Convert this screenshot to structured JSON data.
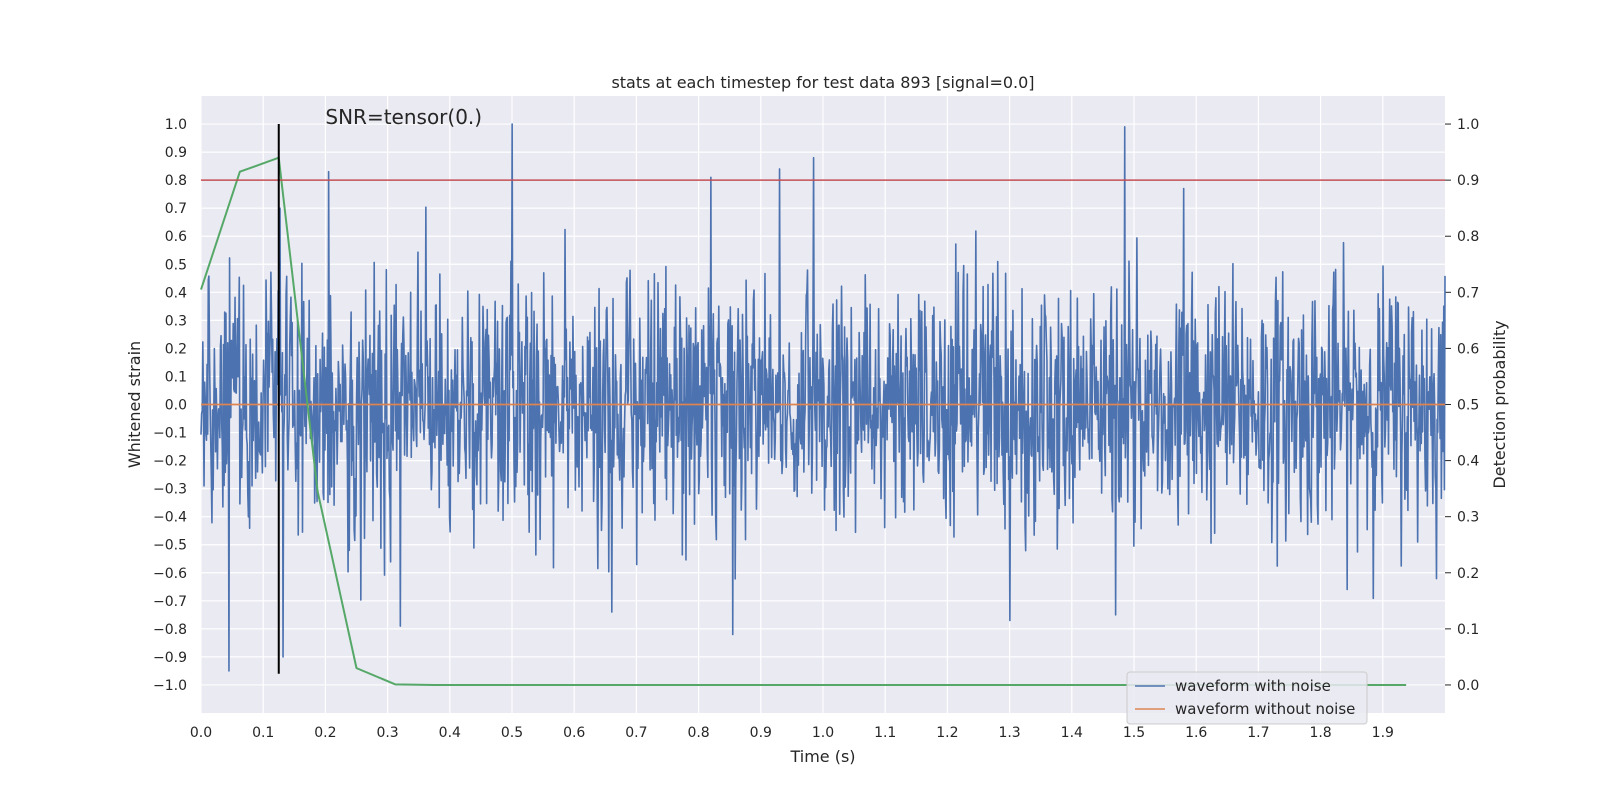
{
  "chart_data": {
    "type": "line",
    "title": "stats at each timestep for test data 893 [signal=0.0]",
    "annotation": "SNR=tensor(0.)",
    "xlabel": "Time (s)",
    "ylabel_left": "Whitened strain",
    "ylabel_right": "Detection probability",
    "xlim": [
      0.0,
      2.0
    ],
    "ylim_left": [
      -1.1,
      1.1
    ],
    "ylim_right": [
      -0.05,
      1.05
    ],
    "x_ticks": [
      "0.0",
      "0.1",
      "0.2",
      "0.3",
      "0.4",
      "0.5",
      "0.6",
      "0.7",
      "0.8",
      "0.9",
      "1.0",
      "1.1",
      "1.2",
      "1.3",
      "1.4",
      "1.5",
      "1.6",
      "1.7",
      "1.8",
      "1.9"
    ],
    "y_ticks_left": [
      "−1.0",
      "−0.9",
      "−0.8",
      "−0.7",
      "−0.6",
      "−0.5",
      "−0.4",
      "−0.3",
      "−0.2",
      "−0.1",
      "0.0",
      "0.1",
      "0.2",
      "0.3",
      "0.4",
      "0.5",
      "0.6",
      "0.7",
      "0.8",
      "0.9",
      "1.0"
    ],
    "y_ticks_right": [
      "0.0",
      "0.1",
      "0.2",
      "0.3",
      "0.4",
      "0.5",
      "0.6",
      "0.7",
      "0.8",
      "0.9",
      "1.0"
    ],
    "grid": true,
    "legend_position": "lower-right",
    "colors": {
      "noise": "#4c72b0",
      "clean": "#dd8452",
      "probability": "#55a868",
      "threshold": "#c44e52",
      "marker": "#000000",
      "axes_bg": "#eaeaf2",
      "grid": "#ffffff"
    },
    "series": [
      {
        "name": "waveform with noise",
        "axis": "left",
        "kind": "noise",
        "sample_count": 2048,
        "x_range": [
          0.0,
          2.0
        ],
        "y_range": [
          -0.95,
          1.0
        ],
        "peaks": [
          {
            "x": 0.045,
            "y": -0.95
          },
          {
            "x": 0.127,
            "y": 0.7
          },
          {
            "x": 0.132,
            "y": -0.9
          },
          {
            "x": 0.205,
            "y": 0.83
          },
          {
            "x": 0.32,
            "y": -0.79
          },
          {
            "x": 0.5,
            "y": 1.0
          },
          {
            "x": 0.66,
            "y": -0.74
          },
          {
            "x": 0.82,
            "y": 0.81
          },
          {
            "x": 0.855,
            "y": -0.82
          },
          {
            "x": 0.93,
            "y": 0.84
          },
          {
            "x": 0.985,
            "y": 0.88
          },
          {
            "x": 1.3,
            "y": -0.77
          },
          {
            "x": 1.47,
            "y": -0.75
          },
          {
            "x": 1.485,
            "y": 0.99
          },
          {
            "x": 1.58,
            "y": 0.77
          }
        ]
      },
      {
        "name": "waveform without noise",
        "axis": "left",
        "x": [
          0.0,
          2.0
        ],
        "y": [
          0.0,
          0.0
        ]
      },
      {
        "name": "",
        "axis": "right",
        "x": [
          0.0,
          0.0625,
          0.125,
          0.1875,
          0.25,
          0.3125,
          0.375,
          0.4375,
          0.5,
          1.0,
          1.5,
          1.9375
        ],
        "y": [
          0.705,
          0.915,
          0.94,
          0.345,
          0.03,
          0.001,
          0.0,
          0.0,
          0.0,
          0.0,
          0.0,
          0.0
        ]
      }
    ],
    "reference_lines": [
      {
        "orientation": "horizontal",
        "axis": "right",
        "value": 0.9
      },
      {
        "orientation": "vertical",
        "axis": "left",
        "x": 0.125,
        "y_from": -0.96,
        "y_to": 1.0
      }
    ],
    "legend": [
      "waveform with noise",
      "waveform without noise"
    ]
  }
}
